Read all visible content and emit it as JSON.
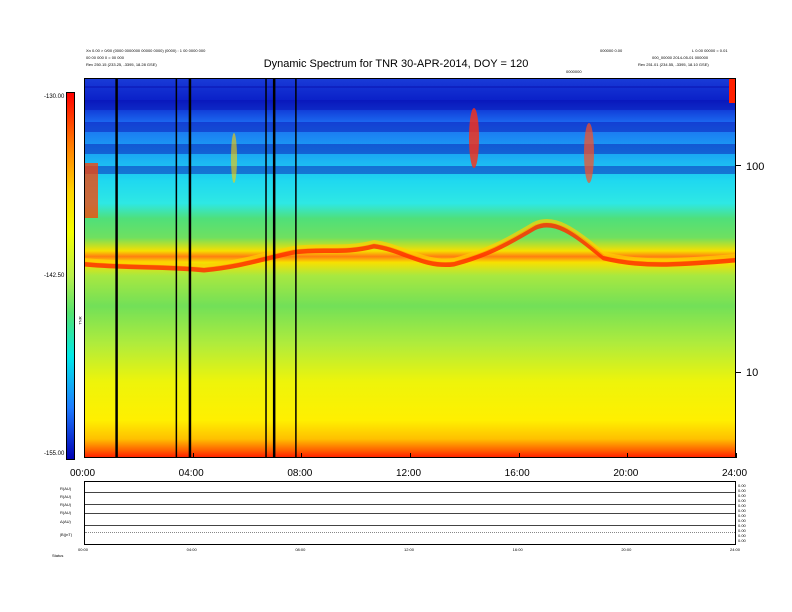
{
  "header": {
    "left_line1": "Xn 0.00 > 0/00 (0000 0000000 00000 0000) (0000) : 1 00 0000 000",
    "left_line2": "00 00 000 0 = 00 000",
    "left_line3": "Rev 250.15 (233.25, -3395, 18.28 GSE)",
    "right_line1a": "000000 0.00",
    "right_line1b": "L 0.00 00000 = 0.01",
    "right_line2": "000_00000 2014-05-01 000000",
    "right_line3": "Rev 251.01 (234.55, -3395, 18.10 GSE)",
    "center_small": "0000000"
  },
  "chart_data": {
    "type": "heatmap",
    "title": "Dynamic Spectrum for TNR 30-APR-2014, DOY = 120",
    "x_axis": {
      "range_hours": [
        0,
        24
      ],
      "ticks": [
        "00:00",
        "04:00",
        "08:00",
        "12:00",
        "16:00",
        "20:00",
        "24:00"
      ]
    },
    "y_axis": {
      "scale": "log",
      "ticks": [
        "100",
        "10"
      ]
    },
    "colorbar": {
      "range": [
        -155.0,
        -130.0
      ],
      "ticks": [
        "-130.00",
        "-142.50",
        "-155.00"
      ],
      "label": "TNR"
    },
    "data_gaps_hours": [
      1.2,
      3.4,
      3.9,
      6.7,
      7.0,
      7.8
    ]
  },
  "ephemeris": {
    "row_labels": [
      "R(AU)",
      "R(AU)",
      "R(AU)",
      "R(AU)",
      "Δ(AU)",
      "|B|(nT)"
    ],
    "right_values": [
      "0.00",
      "0.00",
      "0.00",
      "0.00",
      "0.00",
      "0.00",
      "0.00",
      "0.00",
      "0.00",
      "0.00",
      "0.00",
      "0.00"
    ],
    "mini_ticks": [
      "00:00",
      "04:00",
      "08:00",
      "12:00",
      "16:00",
      "20:00",
      "24:00"
    ],
    "footer_left": "Status"
  }
}
